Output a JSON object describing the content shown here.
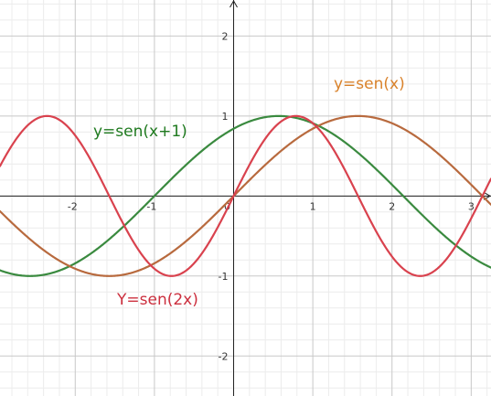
{
  "chart_data": {
    "type": "line",
    "title": "",
    "xlabel": "",
    "ylabel": "",
    "xlim": [
      -2.95,
      3.25
    ],
    "ylim": [
      -2.5,
      2.45
    ],
    "grid": true,
    "x_ticks": [
      "-2",
      "-1",
      "0",
      "1",
      "2",
      "3"
    ],
    "y_ticks": [
      "2",
      "1",
      "-1",
      "-2"
    ],
    "series": [
      {
        "name": "y=sen(x+1)",
        "function": "sin(x+1)",
        "color": "#3a8a3f"
      },
      {
        "name": "y=sen(x)",
        "function": "sin(x)",
        "color": "#b86a3e"
      },
      {
        "name": "Y=sen(2x)",
        "function": "sin(2x)",
        "color": "#d9424e"
      }
    ],
    "label_colors": {
      "y=sen(x+1)": "#1f7a1f",
      "y=sen(x)": "#d9822b",
      "Y=sen(2x)": "#cc2f3e"
    }
  }
}
